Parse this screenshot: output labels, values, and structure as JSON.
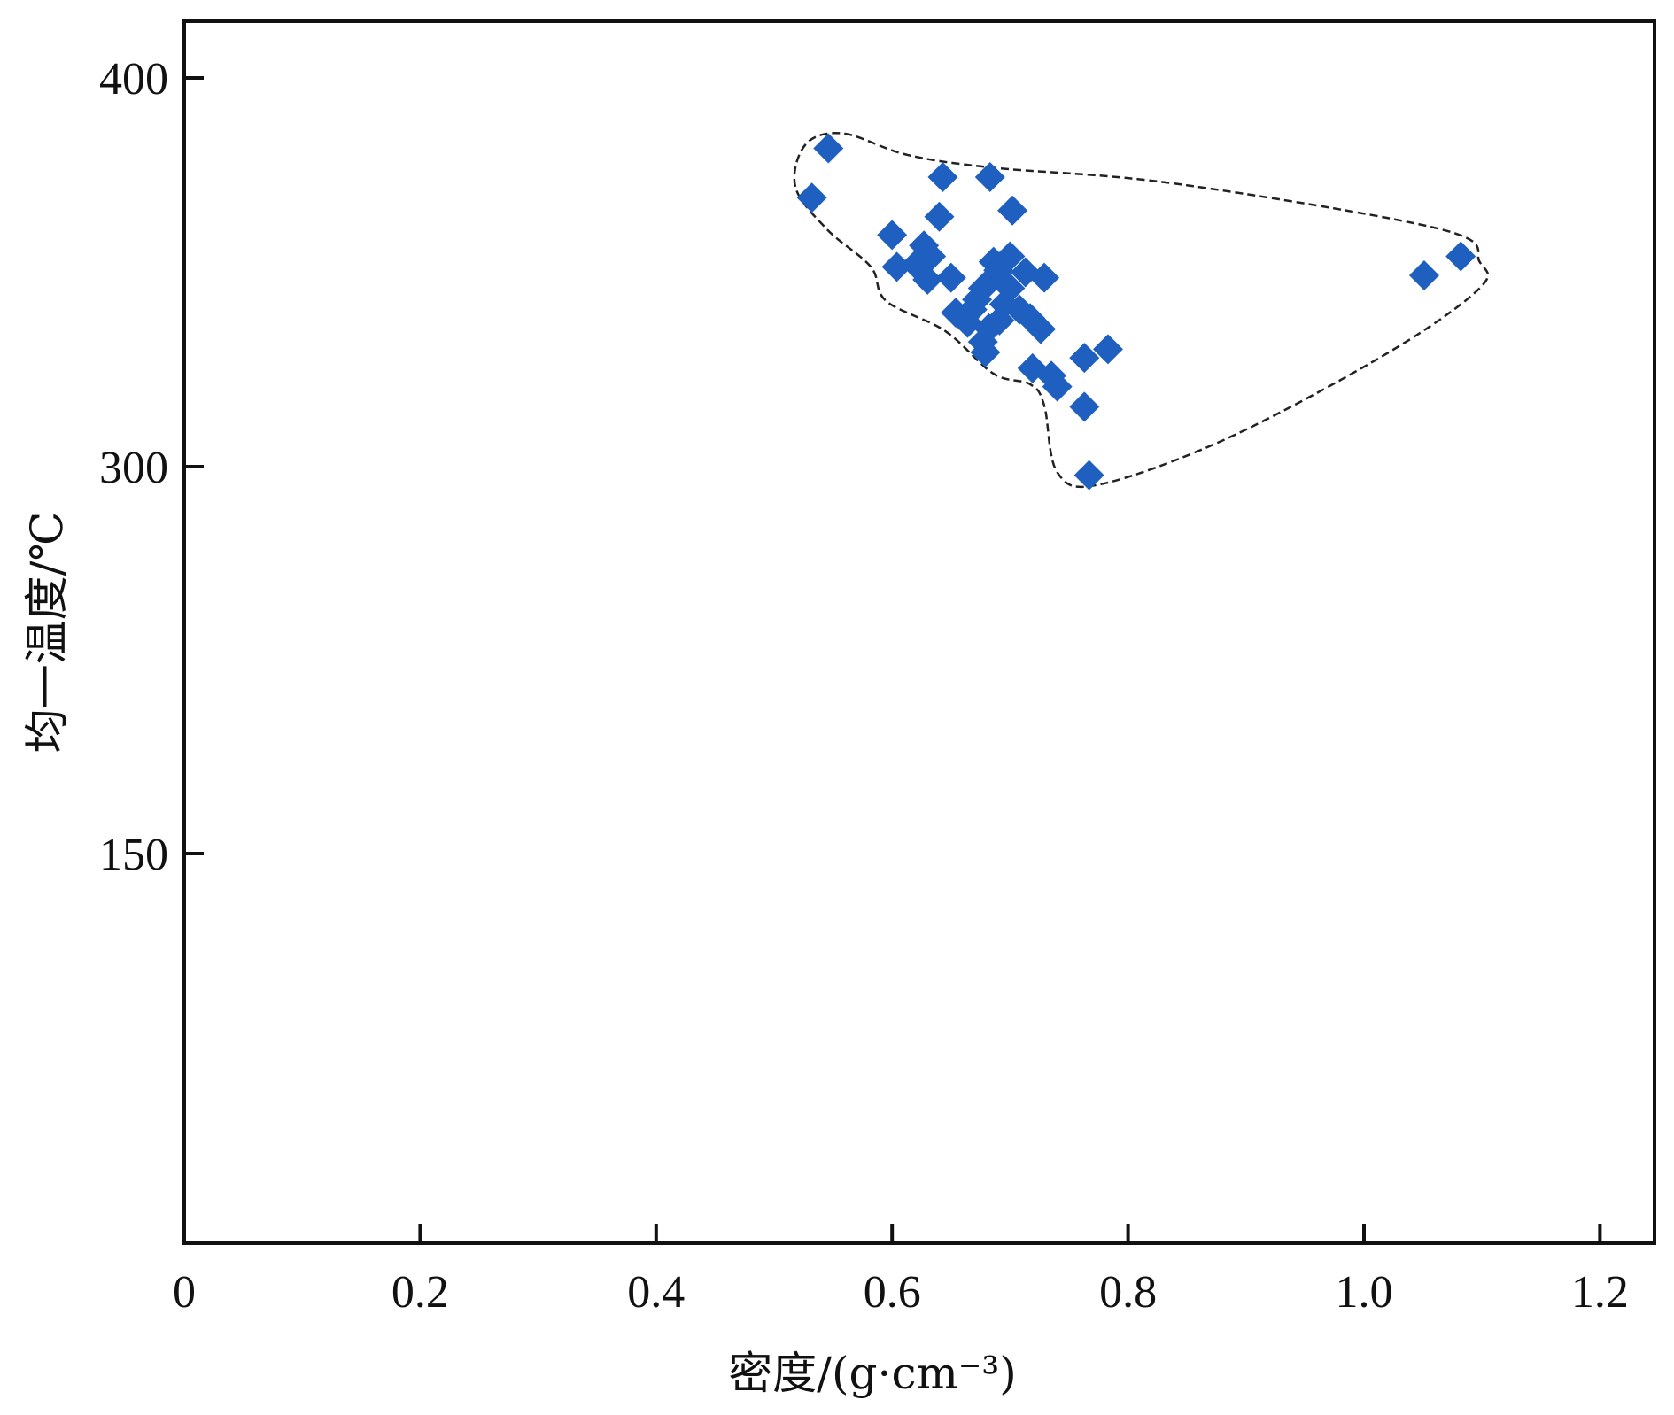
{
  "chart_data": {
    "type": "scatter",
    "title": "",
    "xlabel": "密度/(g·cm⁻³)",
    "ylabel": "均一温度/℃",
    "xlim": [
      0,
      1.24
    ],
    "x_ticks": [
      0,
      0.2,
      0.4,
      0.6,
      0.8,
      1.0,
      1.2
    ],
    "x_tick_labels": [
      "0",
      "0.2",
      "0.4",
      "0.6",
      "0.8",
      "1.0",
      "1.2"
    ],
    "y_ticks": [
      400,
      300,
      150
    ],
    "y_tick_labels": [
      "400",
      "300",
      "150"
    ],
    "y_axis_note": "non-linear axis: labeled ticks equally spaced",
    "grid": false,
    "marker": "diamond",
    "marker_color": "#1f5fbf",
    "envelope_color": "#222222",
    "series": [
      {
        "name": "inclusions",
        "points": [
          [
            0.546,
            381.9
          ],
          [
            0.532,
            369.2
          ],
          [
            0.643,
            374.5
          ],
          [
            0.683,
            374.5
          ],
          [
            0.64,
            364.3
          ],
          [
            0.702,
            365.9
          ],
          [
            0.6,
            359.6
          ],
          [
            0.604,
            351.4
          ],
          [
            0.627,
            356.9
          ],
          [
            0.633,
            354.1
          ],
          [
            0.63,
            348.1
          ],
          [
            0.65,
            348.6
          ],
          [
            0.686,
            352.7
          ],
          [
            0.7,
            354.1
          ],
          [
            0.713,
            350.0
          ],
          [
            0.729,
            348.6
          ],
          [
            0.677,
            345.9
          ],
          [
            0.654,
            339.6
          ],
          [
            0.668,
            340.4
          ],
          [
            0.695,
            341.8
          ],
          [
            0.708,
            340.4
          ],
          [
            0.717,
            338.2
          ],
          [
            0.726,
            335.4
          ],
          [
            0.677,
            332.1
          ],
          [
            0.679,
            329.4
          ],
          [
            0.719,
            325.3
          ],
          [
            0.735,
            323.4
          ],
          [
            0.74,
            320.6
          ],
          [
            0.763,
            328.0
          ],
          [
            0.783,
            330.2
          ],
          [
            0.763,
            315.4
          ],
          [
            0.767,
            296.7
          ],
          [
            1.051,
            349.2
          ],
          [
            1.082,
            354.1
          ],
          [
            0.686,
            348.6
          ],
          [
            0.7,
            345.9
          ],
          [
            0.691,
            337.6
          ],
          [
            0.664,
            337.0
          ],
          [
            0.682,
            335.6
          ],
          [
            0.62,
            352.0
          ],
          [
            0.69,
            350.5
          ],
          [
            0.672,
            343.0
          ]
        ]
      }
    ],
    "envelope": [
      [
        0.518,
        372.0
      ],
      [
        0.527,
        383.0
      ],
      [
        0.559,
        385.7
      ],
      [
        0.613,
        380.2
      ],
      [
        0.686,
        376.9
      ],
      [
        0.84,
        372.8
      ],
      [
        1.066,
        361.0
      ],
      [
        1.098,
        352.7
      ],
      [
        1.098,
        345.9
      ],
      [
        1.021,
        329.4
      ],
      [
        0.885,
        307.4
      ],
      [
        0.776,
        293.1
      ],
      [
        0.74,
        297.8
      ],
      [
        0.729,
        315.7
      ],
      [
        0.717,
        321.2
      ],
      [
        0.686,
        323.9
      ],
      [
        0.645,
        334.9
      ],
      [
        0.595,
        342.6
      ],
      [
        0.582,
        351.4
      ],
      [
        0.545,
        361.0
      ]
    ]
  }
}
